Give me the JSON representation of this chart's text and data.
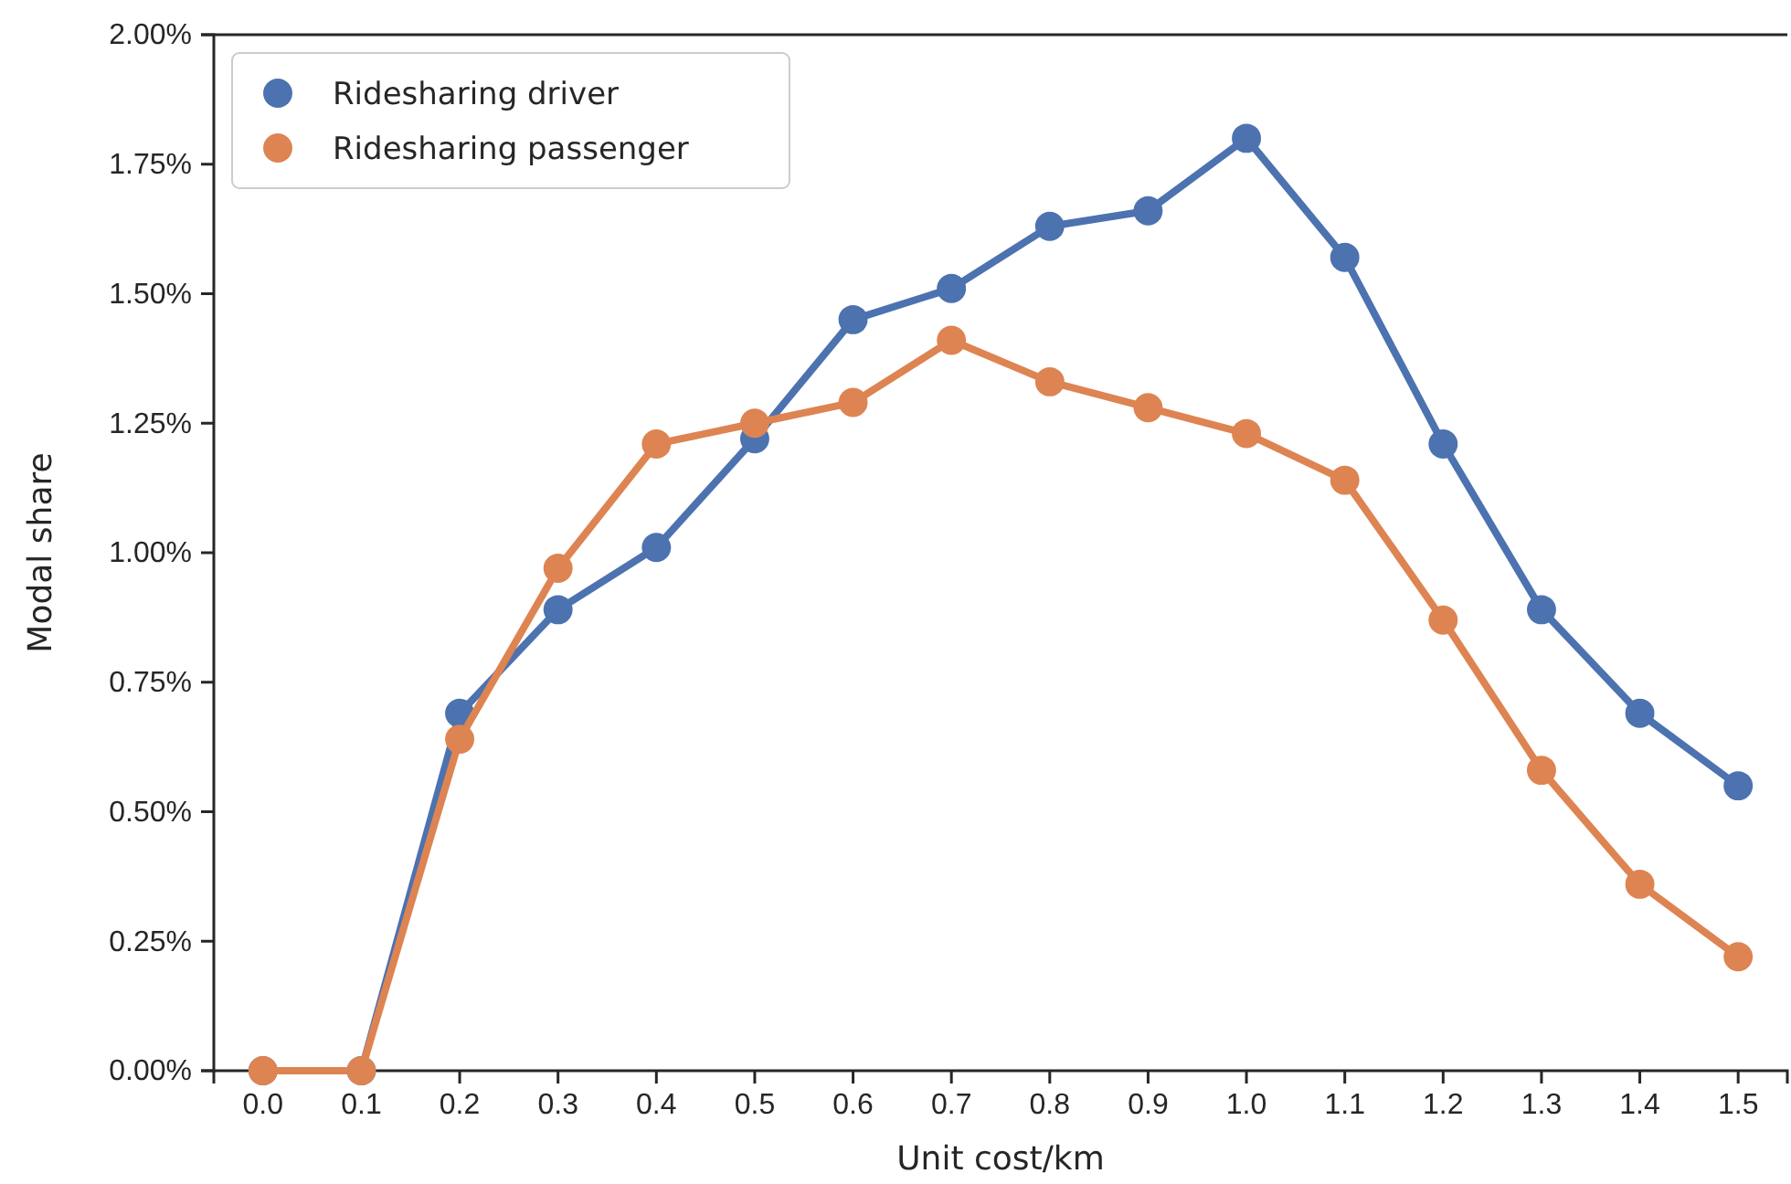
{
  "chart_data": {
    "type": "line",
    "xlabel": "Unit cost/km",
    "ylabel": "Modal share",
    "categories": [
      "0.0",
      "0.1",
      "0.2",
      "0.3",
      "0.4",
      "0.5",
      "0.6",
      "0.7",
      "0.8",
      "0.9",
      "1.0",
      "1.1",
      "1.2",
      "1.3",
      "1.4",
      "1.5"
    ],
    "series": [
      {
        "name": "Ridesharing driver",
        "color": "#4c72b0",
        "values": [
          0,
          0,
          0.69,
          0.89,
          1.01,
          1.22,
          1.45,
          1.51,
          1.63,
          1.66,
          1.8,
          1.57,
          1.21,
          0.89,
          0.69,
          0.55
        ]
      },
      {
        "name": "Ridesharing passenger",
        "color": "#dd8452",
        "values": [
          0,
          0,
          0.64,
          0.97,
          1.21,
          1.25,
          1.29,
          1.41,
          1.33,
          1.28,
          1.23,
          1.14,
          0.87,
          0.58,
          0.36,
          0.22
        ]
      }
    ],
    "ylim": [
      0,
      2
    ],
    "yticks": [
      {
        "value": 0,
        "label": "0.00%"
      },
      {
        "value": 0.25,
        "label": "0.25%"
      },
      {
        "value": 0.5,
        "label": "0.50%"
      },
      {
        "value": 0.75,
        "label": "0.75%"
      },
      {
        "value": 1,
        "label": "1.00%"
      },
      {
        "value": 1.25,
        "label": "1.25%"
      },
      {
        "value": 1.5,
        "label": "1.50%"
      },
      {
        "value": 1.75,
        "label": "1.75%"
      },
      {
        "value": 2,
        "label": "2.00%"
      }
    ],
    "marker": "circle",
    "line_style": "solid",
    "legend": "top left",
    "grid": false
  }
}
